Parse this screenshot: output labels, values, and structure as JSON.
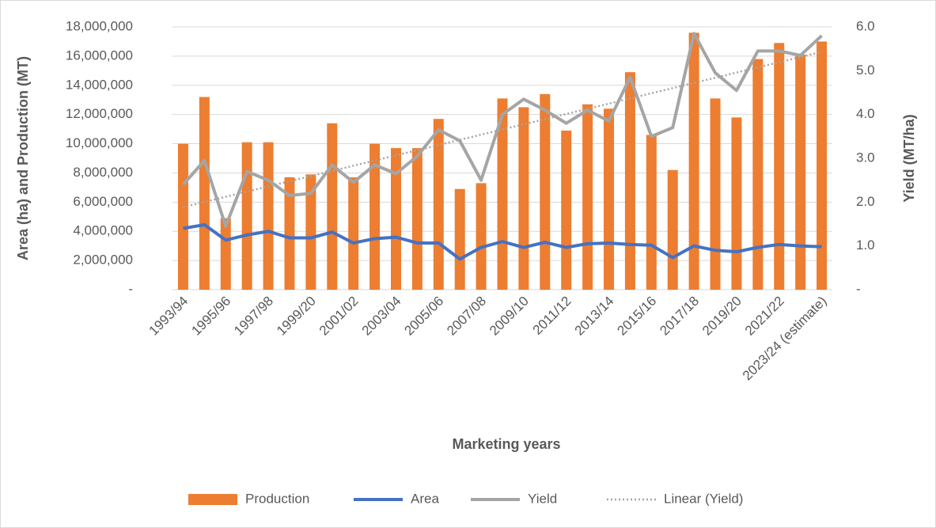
{
  "chart_data": {
    "type": "bar_line_combo",
    "x_label": "Marketing years",
    "y_label": "Area (ha) and Production (MT)",
    "y2_label": "Yield (MT/ha)",
    "categories": [
      "1993/94",
      null,
      "1995/96",
      null,
      "1997/98",
      null,
      "1999/20",
      null,
      "2001/02",
      null,
      "2003/04",
      null,
      "2005/06",
      null,
      "2007/08",
      null,
      "2009/10",
      null,
      "2011/12",
      null,
      "2013/14",
      null,
      "2015/16",
      null,
      "2017/18",
      null,
      "2019/20",
      null,
      "2021/22",
      null,
      "2023/24 (estimate)"
    ],
    "series": [
      {
        "name": "Production",
        "kind": "bar",
        "color": "#ED7D31",
        "values": [
          10000000,
          13200000,
          4900000,
          10100000,
          10100000,
          7700000,
          7900000,
          11400000,
          7700000,
          10000000,
          9700000,
          9700000,
          11700000,
          6900000,
          7300000,
          13100000,
          12500000,
          13400000,
          10900000,
          12700000,
          12400000,
          14900000,
          10600000,
          8200000,
          17600000,
          13100000,
          11800000,
          15800000,
          16900000,
          16100000,
          17000000
        ]
      },
      {
        "name": "Area",
        "kind": "line",
        "color": "#4472C4",
        "values": [
          4200000,
          4450000,
          3400000,
          3750000,
          4000000,
          3550000,
          3550000,
          3950000,
          3200000,
          3500000,
          3600000,
          3200000,
          3200000,
          2100000,
          2900000,
          3300000,
          2900000,
          3250000,
          2900000,
          3150000,
          3200000,
          3100000,
          3050000,
          2200000,
          3000000,
          2700000,
          2600000,
          2900000,
          3100000,
          3000000,
          2950000
        ]
      },
      {
        "name": "Yield",
        "kind": "line",
        "axis": "y2",
        "color": "#A5A5A5",
        "values": [
          2.4,
          2.95,
          1.45,
          2.7,
          2.5,
          2.15,
          2.2,
          2.85,
          2.45,
          2.85,
          2.65,
          3.05,
          3.65,
          3.4,
          2.5,
          4.0,
          4.35,
          4.1,
          3.8,
          4.1,
          3.85,
          4.85,
          3.5,
          3.7,
          5.85,
          4.95,
          4.55,
          5.45,
          5.45,
          5.35,
          5.8
        ]
      },
      {
        "name": "Linear (Yield)",
        "kind": "trend",
        "of": 2,
        "axis": "y2",
        "color": "#A5A5A5"
      }
    ],
    "ylim": [
      0,
      18000000
    ],
    "yticks": [
      {
        "value": 0,
        "label": "-"
      },
      {
        "value": 2000000,
        "label": "2,000,000"
      },
      {
        "value": 4000000,
        "label": "4,000,000"
      },
      {
        "value": 6000000,
        "label": "6,000,000"
      },
      {
        "value": 8000000,
        "label": "8,000,000"
      },
      {
        "value": 10000000,
        "label": "10,000,000"
      },
      {
        "value": 12000000,
        "label": "12,000,000"
      },
      {
        "value": 14000000,
        "label": "14,000,000"
      },
      {
        "value": 16000000,
        "label": "16,000,000"
      },
      {
        "value": 18000000,
        "label": "18,000,000"
      }
    ],
    "y2lim": [
      0,
      6
    ],
    "y2ticks": [
      {
        "value": 0,
        "label": "-"
      },
      {
        "value": 1,
        "label": "1.0"
      },
      {
        "value": 2,
        "label": "2.0"
      },
      {
        "value": 3,
        "label": "3.0"
      },
      {
        "value": 4,
        "label": "4.0"
      },
      {
        "value": 5,
        "label": "5.0"
      },
      {
        "value": 6,
        "label": "6.0"
      }
    ],
    "grid": true,
    "legend": "bottom"
  }
}
